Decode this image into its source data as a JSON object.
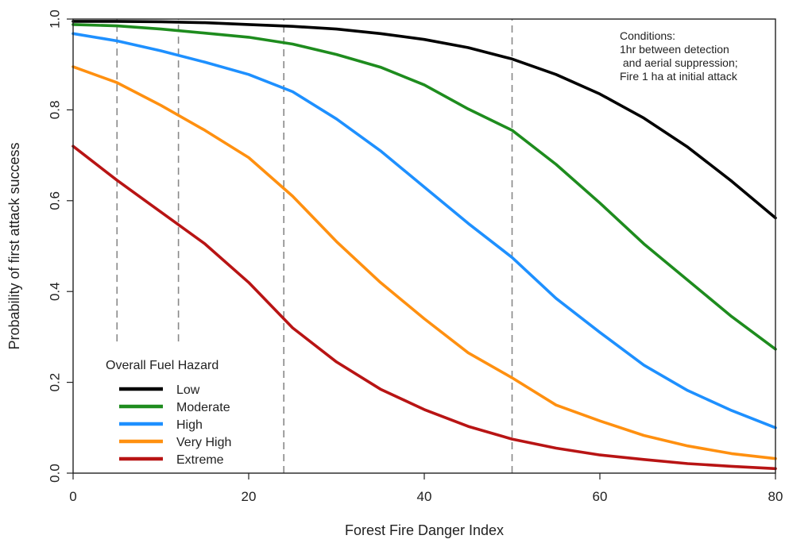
{
  "chart_data": {
    "type": "line",
    "title": "",
    "xlabel": "Forest Fire Danger Index",
    "ylabel": "Probability of first attack success",
    "xlim": [
      0,
      80
    ],
    "ylim": [
      0,
      1
    ],
    "x_ticks": [
      "0",
      "20",
      "40",
      "60",
      "80"
    ],
    "y_ticks": [
      "0.0",
      "0.2",
      "0.4",
      "0.6",
      "0.8",
      "1.0"
    ],
    "x_tick_values": [
      0,
      20,
      40,
      60,
      80
    ],
    "y_tick_values": [
      0,
      0.2,
      0.4,
      0.6,
      0.8,
      1.0
    ],
    "grid": false,
    "legend": {
      "title": "Overall Fuel Hazard",
      "placement": "bottom-left"
    },
    "reference_lines_x": [
      {
        "x": 5,
        "y_from": 0.29,
        "y_to": 1.0
      },
      {
        "x": 12,
        "y_from": 0.29,
        "y_to": 1.0
      },
      {
        "x": 24,
        "y_from": 0,
        "y_to": 1.0
      },
      {
        "x": 50,
        "y_from": 0,
        "y_to": 1.0
      }
    ],
    "annotation": {
      "lines": [
        "Conditions:",
        "1hr between detection",
        " and aerial suppression;",
        "Fire 1 ha at initial attack"
      ],
      "placement": "top-right"
    },
    "x": [
      0,
      5,
      10,
      15,
      20,
      25,
      30,
      35,
      40,
      45,
      50,
      55,
      60,
      65,
      70,
      75,
      80
    ],
    "series": [
      {
        "name": "Low",
        "color": "#000000",
        "values": [
          0.995,
          0.995,
          0.994,
          0.992,
          0.988,
          0.984,
          0.978,
          0.968,
          0.955,
          0.937,
          0.912,
          0.878,
          0.835,
          0.782,
          0.718,
          0.643,
          0.562
        ]
      },
      {
        "name": "Moderate",
        "color": "#1e8c1e",
        "values": [
          0.988,
          0.985,
          0.978,
          0.969,
          0.96,
          0.945,
          0.922,
          0.894,
          0.855,
          0.802,
          0.755,
          0.68,
          0.595,
          0.505,
          0.425,
          0.345,
          0.273
        ]
      },
      {
        "name": "High",
        "color": "#1e90ff",
        "values": [
          0.968,
          0.952,
          0.93,
          0.905,
          0.878,
          0.84,
          0.78,
          0.71,
          0.63,
          0.55,
          0.475,
          0.385,
          0.31,
          0.238,
          0.182,
          0.138,
          0.1
        ]
      },
      {
        "name": "Very High",
        "color": "#ff9010",
        "values": [
          0.895,
          0.86,
          0.81,
          0.755,
          0.695,
          0.61,
          0.51,
          0.42,
          0.34,
          0.265,
          0.21,
          0.15,
          0.115,
          0.083,
          0.06,
          0.043,
          0.032
        ]
      },
      {
        "name": "Extreme",
        "color": "#b81414",
        "values": [
          0.72,
          0.645,
          0.575,
          0.505,
          0.42,
          0.32,
          0.245,
          0.185,
          0.14,
          0.103,
          0.075,
          0.055,
          0.04,
          0.03,
          0.021,
          0.015,
          0.01
        ]
      }
    ]
  }
}
